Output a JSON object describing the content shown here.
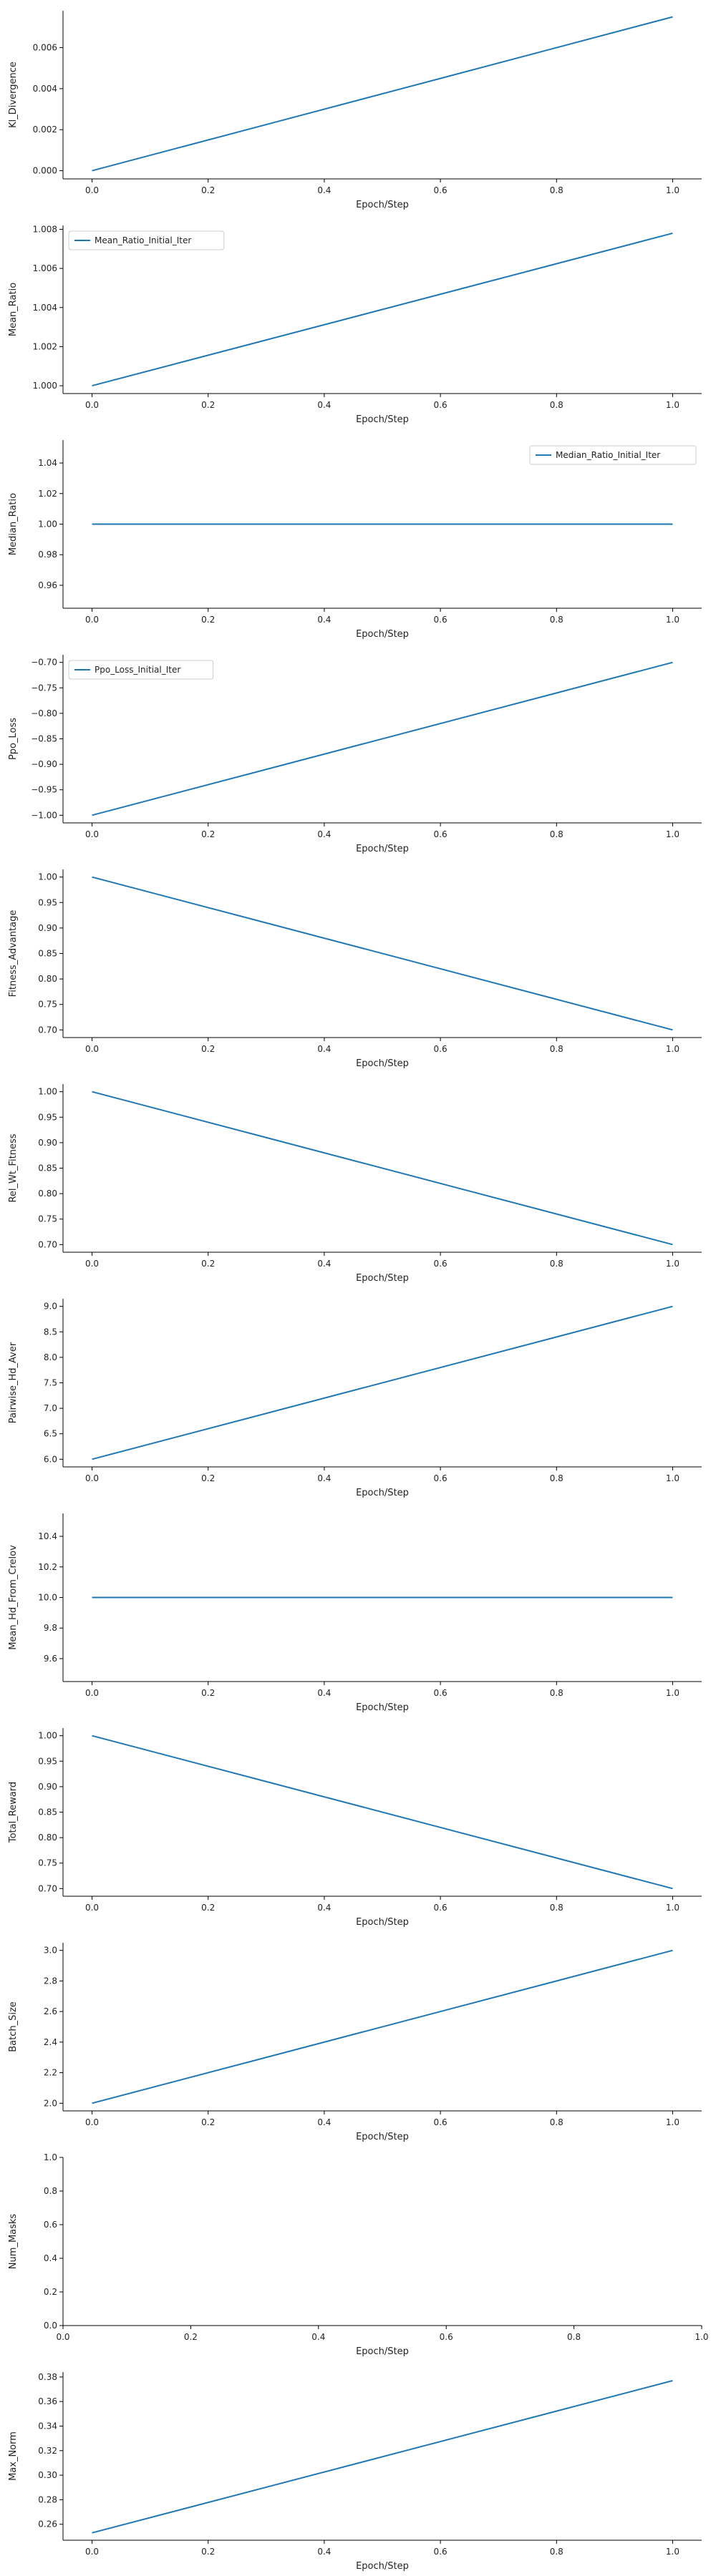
{
  "chart_data": [
    {
      "type": "line",
      "xlabel": "Epoch/Step",
      "ylabel": "Kl_Divergence",
      "xlim": [
        -0.05,
        1.05
      ],
      "ylim": [
        -0.0004,
        0.0078
      ],
      "xticks": [
        "0.0",
        "0.2",
        "0.4",
        "0.6",
        "0.8",
        "1.0"
      ],
      "yticks": [
        "0.000",
        "0.002",
        "0.004",
        "0.006"
      ],
      "x": [
        0.0,
        1.0
      ],
      "series": [
        {
          "name": "",
          "values": [
            0.0,
            0.0075
          ],
          "color": "#1f77b4"
        }
      ],
      "legend": null
    },
    {
      "type": "line",
      "xlabel": "Epoch/Step",
      "ylabel": "Mean_Ratio",
      "xlim": [
        -0.05,
        1.05
      ],
      "ylim": [
        0.9996,
        1.0082
      ],
      "xticks": [
        "0.0",
        "0.2",
        "0.4",
        "0.6",
        "0.8",
        "1.0"
      ],
      "yticks": [
        "1.000",
        "1.002",
        "1.004",
        "1.006",
        "1.008"
      ],
      "x": [
        0.0,
        1.0
      ],
      "series": [
        {
          "name": "Mean_Ratio_Initial_Iter",
          "values": [
            1.0,
            1.0078
          ],
          "color": "#1f77b4"
        }
      ],
      "legend": "upper-left"
    },
    {
      "type": "line",
      "xlabel": "Epoch/Step",
      "ylabel": "Median_Ratio",
      "xlim": [
        -0.05,
        1.05
      ],
      "ylim": [
        0.945,
        1.055
      ],
      "xticks": [
        "0.0",
        "0.2",
        "0.4",
        "0.6",
        "0.8",
        "1.0"
      ],
      "yticks": [
        "0.96",
        "0.98",
        "1.00",
        "1.02",
        "1.04"
      ],
      "x": [
        0.0,
        1.0
      ],
      "series": [
        {
          "name": "Median_Ratio_Initial_Iter",
          "values": [
            1.0,
            1.0
          ],
          "color": "#1f77b4"
        }
      ],
      "legend": "upper-right"
    },
    {
      "type": "line",
      "xlabel": "Epoch/Step",
      "ylabel": "Ppo_Loss",
      "xlim": [
        -0.05,
        1.05
      ],
      "ylim": [
        -1.015,
        -0.685
      ],
      "xticks": [
        "0.0",
        "0.2",
        "0.4",
        "0.6",
        "0.8",
        "1.0"
      ],
      "yticks": [
        "−1.00",
        "−0.95",
        "−0.90",
        "−0.85",
        "−0.80",
        "−0.75",
        "−0.70"
      ],
      "x": [
        0.0,
        1.0
      ],
      "series": [
        {
          "name": "Ppo_Loss_Initial_Iter",
          "values": [
            -1.0,
            -0.7
          ],
          "color": "#1f77b4"
        }
      ],
      "legend": "upper-left"
    },
    {
      "type": "line",
      "xlabel": "Epoch/Step",
      "ylabel": "Fitness_Advantage",
      "xlim": [
        -0.05,
        1.05
      ],
      "ylim": [
        0.685,
        1.015
      ],
      "xticks": [
        "0.0",
        "0.2",
        "0.4",
        "0.6",
        "0.8",
        "1.0"
      ],
      "yticks": [
        "0.70",
        "0.75",
        "0.80",
        "0.85",
        "0.90",
        "0.95",
        "1.00"
      ],
      "x": [
        0.0,
        1.0
      ],
      "series": [
        {
          "name": "",
          "values": [
            1.0,
            0.7
          ],
          "color": "#1f77b4"
        }
      ],
      "legend": null
    },
    {
      "type": "line",
      "xlabel": "Epoch/Step",
      "ylabel": "Rel_Wt_Fitness",
      "xlim": [
        -0.05,
        1.05
      ],
      "ylim": [
        0.685,
        1.015
      ],
      "xticks": [
        "0.0",
        "0.2",
        "0.4",
        "0.6",
        "0.8",
        "1.0"
      ],
      "yticks": [
        "0.70",
        "0.75",
        "0.80",
        "0.85",
        "0.90",
        "0.95",
        "1.00"
      ],
      "x": [
        0.0,
        1.0
      ],
      "series": [
        {
          "name": "",
          "values": [
            1.0,
            0.7
          ],
          "color": "#1f77b4"
        }
      ],
      "legend": null
    },
    {
      "type": "line",
      "xlabel": "Epoch/Step",
      "ylabel": "Pairwise_Hd_Aver",
      "xlim": [
        -0.05,
        1.05
      ],
      "ylim": [
        5.85,
        9.15
      ],
      "xticks": [
        "0.0",
        "0.2",
        "0.4",
        "0.6",
        "0.8",
        "1.0"
      ],
      "yticks": [
        "6.0",
        "6.5",
        "7.0",
        "7.5",
        "8.0",
        "8.5",
        "9.0"
      ],
      "x": [
        0.0,
        1.0
      ],
      "series": [
        {
          "name": "",
          "values": [
            6.0,
            9.0
          ],
          "color": "#1f77b4"
        }
      ],
      "legend": null
    },
    {
      "type": "line",
      "xlabel": "Epoch/Step",
      "ylabel": "Mean_Hd_From_Crelov",
      "xlim": [
        -0.05,
        1.05
      ],
      "ylim": [
        9.45,
        10.55
      ],
      "xticks": [
        "0.0",
        "0.2",
        "0.4",
        "0.6",
        "0.8",
        "1.0"
      ],
      "yticks": [
        "9.6",
        "9.8",
        "10.0",
        "10.2",
        "10.4"
      ],
      "x": [
        0.0,
        1.0
      ],
      "series": [
        {
          "name": "",
          "values": [
            10.0,
            10.0
          ],
          "color": "#1f77b4"
        }
      ],
      "legend": null
    },
    {
      "type": "line",
      "xlabel": "Epoch/Step",
      "ylabel": "Total_Reward",
      "xlim": [
        -0.05,
        1.05
      ],
      "ylim": [
        0.685,
        1.015
      ],
      "xticks": [
        "0.0",
        "0.2",
        "0.4",
        "0.6",
        "0.8",
        "1.0"
      ],
      "yticks": [
        "0.70",
        "0.75",
        "0.80",
        "0.85",
        "0.90",
        "0.95",
        "1.00"
      ],
      "x": [
        0.0,
        1.0
      ],
      "series": [
        {
          "name": "",
          "values": [
            1.0,
            0.7
          ],
          "color": "#1f77b4"
        }
      ],
      "legend": null
    },
    {
      "type": "line",
      "xlabel": "Epoch/Step",
      "ylabel": "Batch_Size",
      "xlim": [
        -0.05,
        1.05
      ],
      "ylim": [
        1.95,
        3.05
      ],
      "xticks": [
        "0.0",
        "0.2",
        "0.4",
        "0.6",
        "0.8",
        "1.0"
      ],
      "yticks": [
        "2.0",
        "2.2",
        "2.4",
        "2.6",
        "2.8",
        "3.0"
      ],
      "x": [
        0.0,
        1.0
      ],
      "series": [
        {
          "name": "",
          "values": [
            2.0,
            3.0
          ],
          "color": "#1f77b4"
        }
      ],
      "legend": null
    },
    {
      "type": "line",
      "xlabel": "Epoch/Step",
      "ylabel": "Num_Masks",
      "xlim": [
        0.0,
        1.0
      ],
      "ylim": [
        0.0,
        1.0
      ],
      "xticks": [
        "0.0",
        "0.2",
        "0.4",
        "0.6",
        "0.8",
        "1.0"
      ],
      "yticks": [
        "0.0",
        "0.2",
        "0.4",
        "0.6",
        "0.8",
        "1.0"
      ],
      "x": [],
      "series": [],
      "legend": null
    },
    {
      "type": "line",
      "xlabel": "Epoch/Step",
      "ylabel": "Max_Norm",
      "xlim": [
        -0.05,
        1.05
      ],
      "ylim": [
        0.247,
        0.384
      ],
      "xticks": [
        "0.0",
        "0.2",
        "0.4",
        "0.6",
        "0.8",
        "1.0"
      ],
      "yticks": [
        "0.26",
        "0.28",
        "0.30",
        "0.32",
        "0.34",
        "0.36",
        "0.38"
      ],
      "x": [
        0.0,
        1.0
      ],
      "series": [
        {
          "name": "",
          "values": [
            0.253,
            0.377
          ],
          "color": "#1f77b4"
        }
      ],
      "legend": null
    }
  ]
}
